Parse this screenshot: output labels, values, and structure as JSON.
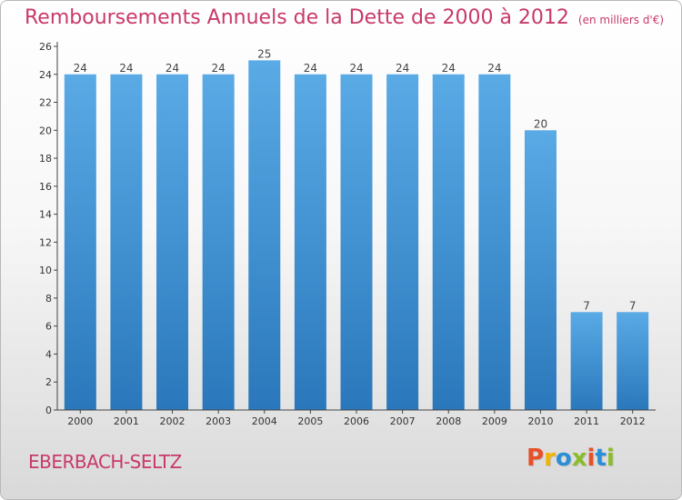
{
  "chart_data": {
    "type": "bar",
    "title": "Remboursements Annuels de la Dette de 2000 à 2012",
    "subtitle": "(en milliers d'€)",
    "categories": [
      "2000",
      "2001",
      "2002",
      "2003",
      "2004",
      "2005",
      "2006",
      "2007",
      "2008",
      "2009",
      "2010",
      "2011",
      "2012"
    ],
    "values": [
      24,
      24,
      24,
      24,
      25,
      24,
      24,
      24,
      24,
      24,
      20,
      7,
      7
    ],
    "ylim": [
      0,
      26
    ],
    "yticks": [
      0,
      2,
      4,
      6,
      8,
      10,
      12,
      14,
      16,
      18,
      20,
      22,
      24,
      26
    ],
    "grid": false,
    "legend": "none",
    "bar_color_top": "#5aaae6",
    "bar_color_bottom": "#2a78bb"
  },
  "footer": {
    "commune": "EBERBACH-SELTZ",
    "logo_text": "Proxiti",
    "logo_colors": [
      "#e8502a",
      "#f2b400",
      "#2a8fd6",
      "#8bbd2a",
      "#e8502a",
      "#2a8fd6",
      "#8bbd2a"
    ]
  },
  "colors": {
    "title": "#c8396b",
    "axis": "#444444"
  }
}
